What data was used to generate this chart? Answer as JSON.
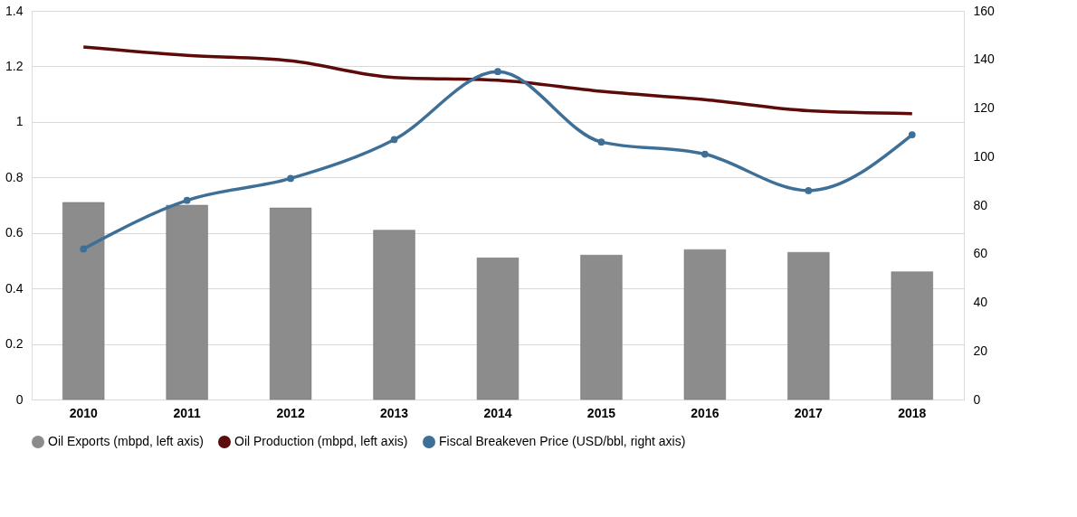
{
  "chart_data": {
    "type": "bar",
    "categories": [
      "2010",
      "2011",
      "2012",
      "2013",
      "2014",
      "2015",
      "2016",
      "2017",
      "2018"
    ],
    "series": [
      {
        "name": "Oil Exports (mbpd, left axis)",
        "color": "#8c8c8c",
        "values": [
          0.71,
          0.7,
          0.69,
          0.61,
          0.51,
          0.52,
          0.54,
          0.53,
          0.46
        ]
      },
      {
        "name": "Oil Production (mbpd, left axis)",
        "type": "line",
        "color": "#5c0a0a",
        "marker": "none",
        "values": [
          1.27,
          1.24,
          1.22,
          1.16,
          1.15,
          1.11,
          1.08,
          1.04,
          1.03
        ]
      },
      {
        "name": "Fiscal Breakeven Price (USD/bbl, right axis)",
        "type": "line",
        "axis": "y2",
        "color": "#3e6f96",
        "marker": "circle",
        "values": [
          62,
          82,
          91,
          107,
          135,
          106,
          101,
          86,
          109
        ]
      }
    ],
    "ylim": [
      0,
      1.4
    ],
    "yticks": [
      0,
      0.2,
      0.4,
      0.6,
      0.8,
      1,
      1.2,
      1.4
    ],
    "y2lim": [
      0,
      160
    ],
    "y2ticks": [
      0,
      20,
      40,
      60,
      80,
      100,
      120,
      140,
      160
    ],
    "grid": "y",
    "legend": "bottom"
  }
}
